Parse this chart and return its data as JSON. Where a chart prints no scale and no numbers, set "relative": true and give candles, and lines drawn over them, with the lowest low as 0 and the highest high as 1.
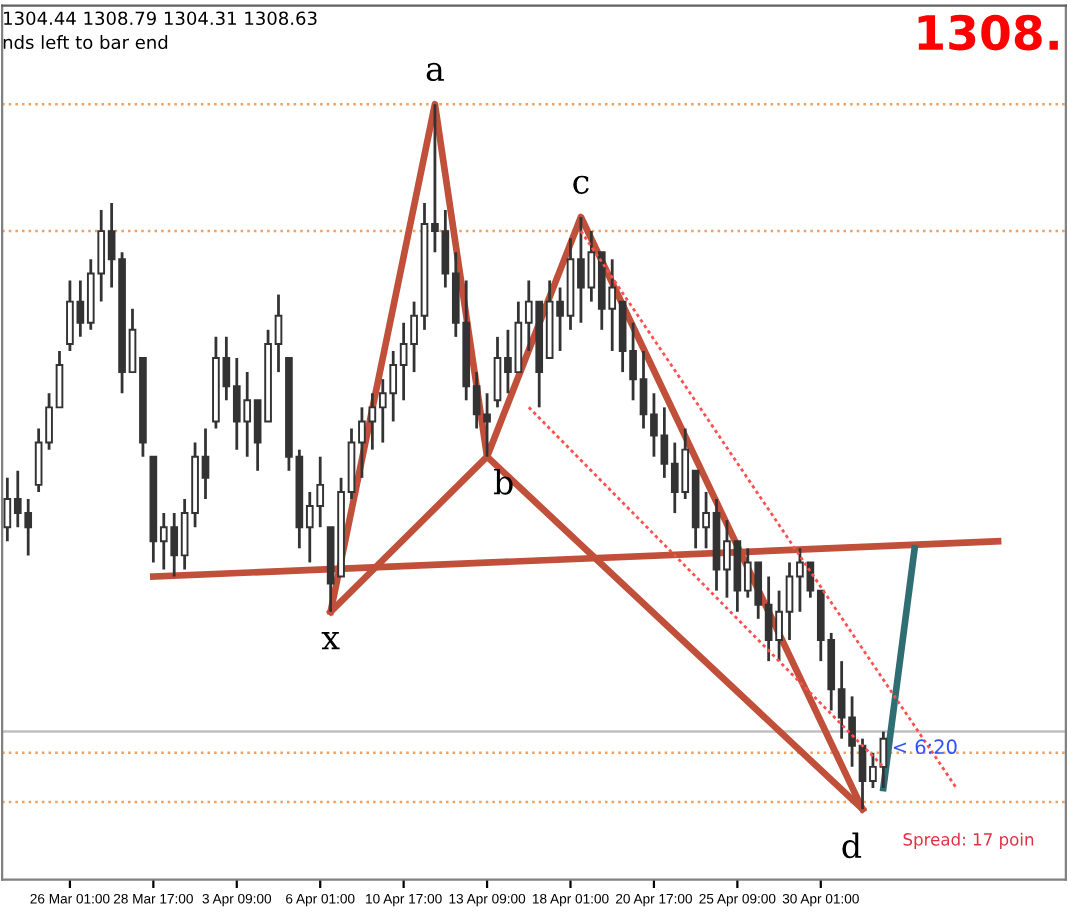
{
  "chart_data": {
    "type": "candlestick",
    "relative": true,
    "tick_labels": "x",
    "categories": [
      null,
      null,
      null,
      null,
      null,
      null,
      "26 Mar 01:00",
      null,
      null,
      null,
      null,
      null,
      null,
      null,
      "28 Mar 17:00",
      null,
      null,
      null,
      null,
      null,
      null,
      null,
      "3 Apr 09:00",
      null,
      null,
      null,
      null,
      null,
      null,
      null,
      "6 Apr 01:00",
      null,
      null,
      null,
      null,
      null,
      null,
      null,
      "10 Apr 17:00",
      null,
      null,
      null,
      null,
      null,
      null,
      null,
      "13 Apr 09:00",
      null,
      null,
      null,
      null,
      null,
      null,
      null,
      "18 Apr 01:00",
      null,
      null,
      null,
      null,
      null,
      null,
      null,
      "20 Apr 17:00",
      null,
      null,
      null,
      null,
      null,
      null,
      null,
      "25 Apr 09:00",
      null,
      null,
      null,
      null,
      null,
      null,
      null,
      "30 Apr 01:00",
      null,
      null,
      null,
      null,
      null,
      null,
      null,
      null,
      null,
      null,
      null,
      null,
      null,
      null,
      null,
      null,
      null,
      null,
      null,
      null,
      null,
      null,
      null
    ],
    "color": "#333333",
    "ohlc": [
      [
        0.4,
        0.47,
        0.38,
        0.44
      ],
      [
        0.44,
        0.48,
        0.4,
        0.42
      ],
      [
        0.42,
        0.44,
        0.36,
        0.4
      ],
      [
        0.46,
        0.54,
        0.45,
        0.52
      ],
      [
        0.52,
        0.59,
        0.51,
        0.57
      ],
      [
        0.57,
        0.65,
        0.57,
        0.63
      ],
      [
        0.66,
        0.75,
        0.65,
        0.72
      ],
      [
        0.72,
        0.75,
        0.67,
        0.69
      ],
      [
        0.69,
        0.78,
        0.68,
        0.76
      ],
      [
        0.76,
        0.85,
        0.72,
        0.82
      ],
      [
        0.82,
        0.86,
        0.74,
        0.78
      ],
      [
        0.78,
        0.79,
        0.59,
        0.62
      ],
      [
        0.62,
        0.71,
        0.62,
        0.68
      ],
      [
        0.64,
        0.64,
        0.5,
        0.52
      ],
      [
        0.5,
        0.5,
        0.35,
        0.38
      ],
      [
        0.38,
        0.42,
        0.34,
        0.4
      ],
      [
        0.4,
        0.42,
        0.33,
        0.36
      ],
      [
        0.36,
        0.44,
        0.34,
        0.42
      ],
      [
        0.42,
        0.52,
        0.4,
        0.5
      ],
      [
        0.5,
        0.54,
        0.44,
        0.47
      ],
      [
        0.55,
        0.67,
        0.54,
        0.64
      ],
      [
        0.64,
        0.67,
        0.58,
        0.6
      ],
      [
        0.6,
        0.64,
        0.51,
        0.55
      ],
      [
        0.55,
        0.62,
        0.5,
        0.58
      ],
      [
        0.58,
        0.58,
        0.48,
        0.52
      ],
      [
        0.55,
        0.68,
        0.55,
        0.66
      ],
      [
        0.66,
        0.73,
        0.62,
        0.7
      ],
      [
        0.64,
        0.64,
        0.48,
        0.5
      ],
      [
        0.5,
        0.51,
        0.37,
        0.4
      ],
      [
        0.4,
        0.45,
        0.35,
        0.43
      ],
      [
        0.43,
        0.5,
        0.4,
        0.46
      ],
      [
        0.4,
        0.4,
        0.28,
        0.32
      ],
      [
        0.33,
        0.47,
        0.33,
        0.45
      ],
      [
        0.45,
        0.54,
        0.44,
        0.52
      ],
      [
        0.52,
        0.57,
        0.47,
        0.55
      ],
      [
        0.55,
        0.59,
        0.51,
        0.57
      ],
      [
        0.57,
        0.61,
        0.52,
        0.59
      ],
      [
        0.59,
        0.65,
        0.55,
        0.63
      ],
      [
        0.63,
        0.69,
        0.58,
        0.66
      ],
      [
        0.66,
        0.72,
        0.62,
        0.7
      ],
      [
        0.7,
        0.86,
        0.68,
        0.83
      ],
      [
        0.83,
        1.0,
        0.79,
        0.82
      ],
      [
        0.82,
        0.85,
        0.74,
        0.76
      ],
      [
        0.76,
        0.79,
        0.67,
        0.69
      ],
      [
        0.69,
        0.75,
        0.58,
        0.6
      ],
      [
        0.6,
        0.62,
        0.54,
        0.56
      ],
      [
        0.56,
        0.59,
        0.5,
        0.55
      ],
      [
        0.58,
        0.67,
        0.57,
        0.64
      ],
      [
        0.64,
        0.68,
        0.59,
        0.62
      ],
      [
        0.62,
        0.72,
        0.62,
        0.69
      ],
      [
        0.69,
        0.75,
        0.65,
        0.72
      ],
      [
        0.72,
        0.72,
        0.57,
        0.62
      ],
      [
        0.64,
        0.75,
        0.64,
        0.72
      ],
      [
        0.72,
        0.74,
        0.65,
        0.7
      ],
      [
        0.7,
        0.81,
        0.68,
        0.78
      ],
      [
        0.78,
        0.84,
        0.69,
        0.74
      ],
      [
        0.74,
        0.82,
        0.72,
        0.79
      ],
      [
        0.79,
        0.79,
        0.68,
        0.71
      ],
      [
        0.71,
        0.78,
        0.65,
        0.74
      ],
      [
        0.72,
        0.72,
        0.62,
        0.65
      ],
      [
        0.65,
        0.69,
        0.58,
        0.61
      ],
      [
        0.61,
        0.65,
        0.54,
        0.56
      ],
      [
        0.56,
        0.59,
        0.5,
        0.53
      ],
      [
        0.53,
        0.57,
        0.47,
        0.49
      ],
      [
        0.49,
        0.52,
        0.42,
        0.45
      ],
      [
        0.45,
        0.54,
        0.44,
        0.51
      ],
      [
        0.48,
        0.48,
        0.37,
        0.4
      ],
      [
        0.4,
        0.45,
        0.37,
        0.42
      ],
      [
        0.42,
        0.44,
        0.31,
        0.34
      ],
      [
        0.34,
        0.41,
        0.3,
        0.38
      ],
      [
        0.38,
        0.38,
        0.28,
        0.31
      ],
      [
        0.31,
        0.37,
        0.3,
        0.35
      ],
      [
        0.35,
        0.35,
        0.27,
        0.29
      ],
      [
        0.29,
        0.33,
        0.21,
        0.24
      ],
      [
        0.24,
        0.31,
        0.21,
        0.28
      ],
      [
        0.28,
        0.35,
        0.24,
        0.33
      ],
      [
        0.33,
        0.37,
        0.28,
        0.35
      ],
      [
        0.35,
        0.35,
        0.3,
        0.31
      ],
      [
        0.31,
        0.31,
        0.21,
        0.24
      ],
      [
        0.24,
        0.25,
        0.14,
        0.17
      ],
      [
        0.17,
        0.21,
        0.1,
        0.13
      ],
      [
        0.13,
        0.16,
        0.06,
        0.09
      ],
      [
        0.09,
        0.1,
        0,
        0.04
      ],
      [
        0.04,
        0.08,
        0.03,
        0.06
      ],
      [
        0.06,
        0.11,
        0.03,
        0.1
      ],
      null,
      null,
      null,
      null,
      null,
      null,
      null,
      null,
      null,
      null,
      null,
      null,
      null,
      null,
      null,
      null,
      null
    ],
    "series": [
      {
        "type": "line",
        "color": "#c0503a",
        "line_style": "solid",
        "values": [
          null,
          null,
          null,
          null,
          null,
          null,
          null,
          null,
          null,
          null,
          null,
          null,
          null,
          null,
          null,
          null,
          null,
          null,
          null,
          null,
          null,
          null,
          null,
          null,
          null,
          null,
          null,
          null,
          null,
          null,
          null,
          0.28,
          null,
          null,
          null,
          null,
          null,
          null,
          null,
          null,
          null,
          1.0,
          null,
          null,
          null,
          null,
          0.5,
          null,
          null,
          null,
          null,
          null,
          null,
          null,
          null,
          0.84,
          null,
          null,
          null,
          null,
          null,
          null,
          null,
          null,
          null,
          null,
          null,
          null,
          null,
          null,
          null,
          null,
          null,
          null,
          null,
          null,
          null,
          null,
          null,
          null,
          null,
          null,
          0,
          null,
          null,
          null,
          null,
          null,
          null,
          null,
          null,
          null,
          null,
          null,
          null,
          null,
          null,
          null,
          null,
          null,
          null,
          null
        ]
      },
      {
        "type": "line",
        "color": "#c0503a",
        "line_style": "solid",
        "values": [
          null,
          null,
          null,
          null,
          null,
          null,
          null,
          null,
          null,
          null,
          null,
          null,
          null,
          null,
          null,
          null,
          null,
          null,
          null,
          null,
          null,
          null,
          null,
          null,
          null,
          null,
          null,
          null,
          null,
          null,
          null,
          0.28,
          null,
          null,
          null,
          null,
          null,
          null,
          null,
          null,
          null,
          null,
          null,
          null,
          null,
          null,
          0.5,
          null,
          null,
          null,
          null,
          null,
          null,
          null,
          null,
          null,
          null,
          null,
          null,
          null,
          null,
          null,
          null,
          null,
          null,
          null,
          null,
          null,
          null,
          null,
          null,
          null,
          null,
          null,
          null,
          null,
          null,
          null,
          null,
          null,
          null,
          null,
          0,
          null,
          null,
          null,
          null,
          null,
          null,
          null,
          null,
          null,
          null,
          null,
          null,
          null,
          null,
          null,
          null,
          null,
          null,
          null
        ]
      },
      {
        "type": "line",
        "color": "#c0503a",
        "line_style": "solid",
        "values": [
          null,
          null,
          null,
          null,
          null,
          null,
          null,
          null,
          null,
          null,
          null,
          null,
          null,
          null,
          0.33,
          null,
          null,
          null,
          null,
          null,
          null,
          null,
          null,
          null,
          null,
          null,
          null,
          null,
          null,
          null,
          null,
          null,
          null,
          null,
          null,
          null,
          null,
          null,
          null,
          null,
          null,
          null,
          null,
          null,
          null,
          null,
          null,
          null,
          null,
          null,
          null,
          null,
          null,
          null,
          null,
          null,
          null,
          null,
          null,
          null,
          null,
          null,
          null,
          null,
          null,
          null,
          null,
          null,
          null,
          null,
          null,
          null,
          null,
          null,
          null,
          null,
          null,
          null,
          null,
          null,
          null,
          null,
          null,
          null,
          null,
          null,
          null,
          null,
          null,
          null,
          null,
          null,
          null,
          null,
          null,
          0.38,
          null,
          null,
          null,
          null,
          null,
          null
        ]
      },
      {
        "type": "line",
        "color": "#2f6f73",
        "line_style": "solid",
        "values": [
          null,
          null,
          null,
          null,
          null,
          null,
          null,
          null,
          null,
          null,
          null,
          null,
          null,
          null,
          null,
          null,
          null,
          null,
          null,
          null,
          null,
          null,
          null,
          null,
          null,
          null,
          null,
          null,
          null,
          null,
          null,
          null,
          null,
          null,
          null,
          null,
          null,
          null,
          null,
          null,
          null,
          null,
          null,
          null,
          null,
          null,
          null,
          null,
          null,
          null,
          null,
          null,
          null,
          null,
          null,
          null,
          null,
          null,
          null,
          null,
          null,
          null,
          null,
          null,
          null,
          null,
          null,
          null,
          null,
          null,
          null,
          null,
          null,
          null,
          null,
          null,
          null,
          null,
          null,
          null,
          null,
          null,
          null,
          null,
          0.03,
          null,
          null,
          0.37,
          null,
          null,
          null,
          null,
          null,
          null,
          null,
          null,
          null,
          null,
          null,
          null,
          null,
          null
        ]
      },
      {
        "type": "line",
        "color": "#ff5050",
        "line_style": "dotted",
        "values": [
          null,
          null,
          null,
          null,
          null,
          null,
          null,
          null,
          null,
          null,
          null,
          null,
          null,
          null,
          null,
          null,
          null,
          null,
          null,
          null,
          null,
          null,
          null,
          null,
          null,
          null,
          null,
          null,
          null,
          null,
          null,
          null,
          null,
          null,
          null,
          null,
          null,
          null,
          null,
          null,
          null,
          null,
          null,
          null,
          null,
          null,
          null,
          null,
          null,
          null,
          null,
          null,
          null,
          null,
          null,
          0.82,
          null,
          null,
          null,
          null,
          null,
          null,
          null,
          null,
          null,
          null,
          null,
          null,
          null,
          null,
          null,
          null,
          null,
          null,
          null,
          null,
          null,
          null,
          null,
          null,
          null,
          null,
          null,
          null,
          null,
          null,
          null,
          null,
          null,
          null,
          null,
          0.03,
          null,
          null,
          null,
          null,
          null,
          null,
          null,
          null,
          null,
          null
        ]
      },
      {
        "type": "line",
        "color": "#ff5050",
        "line_style": "dotted",
        "values": [
          null,
          null,
          null,
          null,
          null,
          null,
          null,
          null,
          null,
          null,
          null,
          null,
          null,
          null,
          null,
          null,
          null,
          null,
          null,
          null,
          null,
          null,
          null,
          null,
          null,
          null,
          null,
          null,
          null,
          null,
          null,
          null,
          null,
          null,
          null,
          null,
          null,
          null,
          null,
          null,
          null,
          null,
          null,
          null,
          null,
          null,
          null,
          null,
          null,
          null,
          0.57,
          null,
          null,
          null,
          null,
          null,
          null,
          null,
          null,
          null,
          null,
          null,
          null,
          null,
          null,
          null,
          null,
          null,
          null,
          null,
          null,
          null,
          null,
          null,
          null,
          null,
          null,
          null,
          null,
          null,
          null,
          null,
          null,
          null,
          0.06,
          null,
          null,
          null,
          null,
          null,
          null,
          null,
          null,
          null,
          null,
          null,
          null,
          null,
          null,
          null,
          null,
          null
        ]
      }
    ],
    "ref_lines": [
      {
        "axis": "y",
        "value": 1.0,
        "color": "#f0a060",
        "line_style": "dotted"
      },
      {
        "axis": "y",
        "value": 0.82,
        "color": "#f0a060",
        "line_style": "dotted"
      },
      {
        "axis": "y",
        "value": 0.08,
        "color": "#f0a060",
        "line_style": "dotted"
      },
      {
        "axis": "y",
        "value": 0.01,
        "color": "#f0a060",
        "line_style": "dotted"
      },
      {
        "axis": "y",
        "value": 0.11,
        "color": "#c0c0c0",
        "line_style": "solid"
      }
    ],
    "annotations": [
      "x",
      "a",
      "b",
      "c",
      "d",
      "1304.44 1308.79 1304.31 1308.63",
      "nds left to bar end",
      "1308.",
      "< 6:20",
      "Spread: 17 poin"
    ]
  }
}
